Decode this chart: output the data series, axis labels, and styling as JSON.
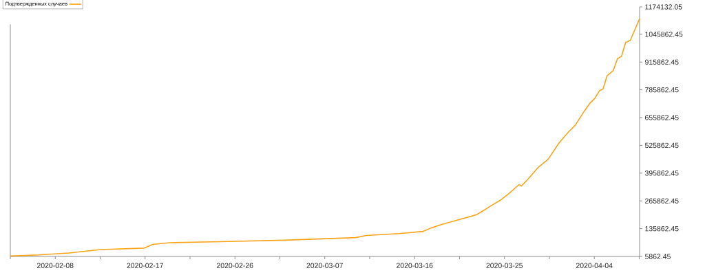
{
  "chart_data": {
    "type": "line",
    "x": [
      "2020-02-03T08:00",
      "2020-02-06T08:00",
      "2020-02-09T10:00",
      "2020-02-12T18:00",
      "2020-02-17T06:00",
      "2020-02-18T03:00",
      "2020-02-19T22:00",
      "2020-02-25T03:00",
      "2020-03-02T18:00",
      "2020-03-10T05:00",
      "2020-03-11T08:00",
      "2020-03-14T17:00",
      "2020-03-17T05:00",
      "2020-03-18T01:00",
      "2020-03-19T05:00",
      "2020-03-21T08:00",
      "2020-03-22T18:00",
      "2020-03-23T11:00",
      "2020-03-24T05:00",
      "2020-03-25T05:00",
      "2020-03-26T03:00",
      "2020-03-27T05:00",
      "2020-03-27T10:00",
      "2020-03-28T01:00",
      "2020-03-29T05:00",
      "2020-03-30T05:00",
      "2020-03-31T08:00",
      "2020-04-01T08:00",
      "2020-04-02T01:00",
      "2020-04-02T23:00",
      "2020-04-03T13:00",
      "2020-04-04T01:00",
      "2020-04-04T13:00",
      "2020-04-04T22:00",
      "2020-04-05T08:00",
      "2020-04-05T23:00",
      "2020-04-06T10:00",
      "2020-04-06T20:00",
      "2020-04-07T06:00",
      "2020-04-07T18:00",
      "2020-04-08T17:00"
    ],
    "series": [
      {
        "name": "Подтвержденных случаев",
        "color": "#f7a418",
        "values": [
          8000,
          13000,
          22000,
          38000,
          45000,
          62000,
          70000,
          75000,
          82000,
          94000,
          104000,
          113000,
          123000,
          139000,
          156000,
          183000,
          201000,
          220000,
          241000,
          268000,
          300000,
          343000,
          335000,
          364000,
          424000,
          461000,
          537000,
          589000,
          621000,
          686000,
          723000,
          745000,
          782000,
          790000,
          852000,
          875000,
          932000,
          943000,
          1007000,
          1018000,
          1119000
        ]
      }
    ],
    "xlim": [
      "2020-02-03T08:00",
      "2020-04-08T17:00"
    ],
    "xticks": [
      {
        "value": "2020-02-03T08:00",
        "label": null
      },
      {
        "value": "2020-02-08T00:00",
        "label": "2020-02-08"
      },
      {
        "value": "2020-02-12T16:00",
        "label": null
      },
      {
        "value": "2020-02-17T08:00",
        "label": "2020-02-17"
      },
      {
        "value": "2020-02-22T00:00",
        "label": null
      },
      {
        "value": "2020-02-26T16:00",
        "label": "2020-02-26"
      },
      {
        "value": "2020-03-02T08:00",
        "label": null
      },
      {
        "value": "2020-03-07T00:00",
        "label": "2020-03-07"
      },
      {
        "value": "2020-03-11T16:00",
        "label": null
      },
      {
        "value": "2020-03-16T08:00",
        "label": "2020-03-16"
      },
      {
        "value": "2020-03-21T00:00",
        "label": null
      },
      {
        "value": "2020-03-25T16:00",
        "label": "2020-03-25"
      },
      {
        "value": "2020-03-30T08:00",
        "label": null
      },
      {
        "value": "2020-04-04T00:00",
        "label": "2020-04-04"
      },
      {
        "value": "2020-04-08T16:00",
        "label": null
      }
    ],
    "ylim": [
      5862.45,
      1174132.05
    ],
    "yticks": [
      5862.45,
      135862.45,
      265862.45,
      395862.45,
      525862.45,
      655862.45,
      785862.45,
      915862.45,
      1045862.45,
      1174132.05
    ],
    "legend": "top left",
    "grid": false,
    "marker": "none",
    "line_style": "solid"
  }
}
